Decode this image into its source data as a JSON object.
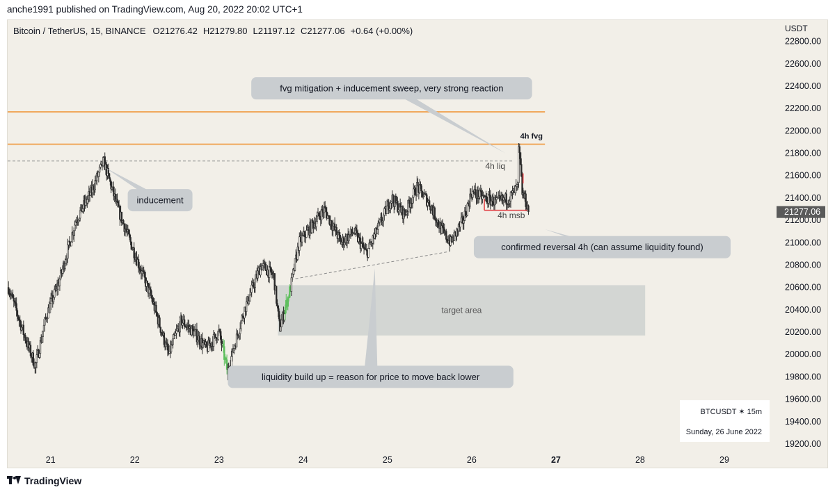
{
  "header": {
    "published_line": "anche1991 published on TradingView.com, Aug 20, 2022 20:02 UTC+1"
  },
  "legend": {
    "symbol": "Bitcoin / TetherUS, 15, BINANCE",
    "open": "O21276.42",
    "high": "H21279.80",
    "low": "L21197.12",
    "close": "C21277.06",
    "change": "+0.64 (+0.00%)"
  },
  "footer": {
    "brand": "TradingView"
  },
  "watermark": {
    "symbol": "BTCUSDT ✶ 15m",
    "date": "Sunday, 26 June 2022"
  },
  "colors": {
    "background": "#f2efe8",
    "candle": "#2b2b2b",
    "bull_highlight": "#5fbf5f",
    "orange_level": "#f0a85c",
    "red_marker": "#e0393e",
    "callout": "#c9cdd0",
    "target_zone": "#d3d6d3",
    "price_tag": "#5a5a5a"
  },
  "chart_data": {
    "type": "candlestick",
    "symbol": "BTCUSDT",
    "timeframe": "15m",
    "currency_label": "USDT",
    "y_ticks": [
      "22800.00",
      "22600.00",
      "22400.00",
      "22200.00",
      "22000.00",
      "21800.00",
      "21600.00",
      "21400.00",
      "21200.00",
      "21000.00",
      "20800.00",
      "20600.00",
      "20400.00",
      "20200.00",
      "20000.00",
      "19800.00",
      "19600.00",
      "19400.00",
      "19200.00"
    ],
    "ylim": [
      19150,
      22990
    ],
    "x_ticks": [
      "21",
      "22",
      "23",
      "24",
      "25",
      "26",
      "27",
      "28",
      "29"
    ],
    "x_ticks_bold": [
      "27"
    ],
    "xlim": [
      20.49,
      29.62
    ],
    "last_price": "21277.06",
    "price_path": [
      {
        "x": 20.5,
        "y": 20600
      },
      {
        "x": 20.72,
        "y": 20100
      },
      {
        "x": 20.82,
        "y": 19900
      },
      {
        "x": 20.95,
        "y": 20350
      },
      {
        "x": 21.1,
        "y": 20650
      },
      {
        "x": 21.3,
        "y": 21200
      },
      {
        "x": 21.48,
        "y": 21450
      },
      {
        "x": 21.63,
        "y": 21730
      },
      {
        "x": 21.8,
        "y": 21300
      },
      {
        "x": 22.0,
        "y": 20900
      },
      {
        "x": 22.2,
        "y": 20500
      },
      {
        "x": 22.4,
        "y": 20000
      },
      {
        "x": 22.55,
        "y": 20300
      },
      {
        "x": 22.7,
        "y": 20200
      },
      {
        "x": 22.85,
        "y": 20050
      },
      {
        "x": 23.0,
        "y": 20200
      },
      {
        "x": 23.1,
        "y": 19850
      },
      {
        "x": 23.3,
        "y": 20400
      },
      {
        "x": 23.5,
        "y": 20800
      },
      {
        "x": 23.65,
        "y": 20700
      },
      {
        "x": 23.72,
        "y": 20230
      },
      {
        "x": 23.85,
        "y": 20600
      },
      {
        "x": 23.95,
        "y": 21000
      },
      {
        "x": 24.1,
        "y": 21150
      },
      {
        "x": 24.25,
        "y": 21300
      },
      {
        "x": 24.45,
        "y": 21000
      },
      {
        "x": 24.6,
        "y": 21100
      },
      {
        "x": 24.75,
        "y": 20900
      },
      {
        "x": 24.9,
        "y": 21150
      },
      {
        "x": 25.05,
        "y": 21400
      },
      {
        "x": 25.2,
        "y": 21250
      },
      {
        "x": 25.35,
        "y": 21500
      },
      {
        "x": 25.5,
        "y": 21350
      },
      {
        "x": 25.65,
        "y": 21100
      },
      {
        "x": 25.75,
        "y": 21000
      },
      {
        "x": 25.9,
        "y": 21200
      },
      {
        "x": 26.0,
        "y": 21450
      },
      {
        "x": 26.15,
        "y": 21400
      },
      {
        "x": 26.3,
        "y": 21360
      },
      {
        "x": 26.45,
        "y": 21400
      },
      {
        "x": 26.55,
        "y": 21500
      },
      {
        "x": 26.56,
        "y": 21870
      },
      {
        "x": 26.6,
        "y": 21450
      },
      {
        "x": 26.65,
        "y": 21350
      },
      {
        "x": 26.68,
        "y": 21277
      }
    ],
    "green_candle_x_ranges": [
      [
        23.05,
        23.1
      ],
      [
        23.78,
        23.85
      ]
    ],
    "levels": [
      {
        "price": 22170,
        "x_start": 20.49,
        "x_end": 26.87,
        "style": "solid",
        "color": "orange"
      },
      {
        "price": 21880,
        "x_start": 20.49,
        "x_end": 26.87,
        "style": "solid",
        "color": "orange"
      },
      {
        "price": 21730,
        "x_start": 20.49,
        "x_end": 26.48,
        "style": "dashed",
        "color": "grey"
      }
    ],
    "trendlines": [
      {
        "from": {
          "x": 23.85,
          "y": 20670
        },
        "to": {
          "x": 25.73,
          "y": 20920
        },
        "style": "dashed"
      }
    ],
    "zones": [
      {
        "label": "target area",
        "x_start": 23.7,
        "x_end": 28.06,
        "y_low": 20170,
        "y_high": 20620
      }
    ],
    "annotations": [
      {
        "text": "fvg mitigation + inducement sweep, very strong reaction",
        "x": 25.05,
        "y": 22380,
        "type": "callout",
        "pointer": {
          "x": 26.4,
          "y": 21800
        }
      },
      {
        "text": "inducement",
        "x": 22.3,
        "y": 21380,
        "type": "callout",
        "pointer": {
          "x": 21.65,
          "y": 21670
        }
      },
      {
        "text": "confirmed reversal 4h (can assume liquidity found)",
        "x": 27.55,
        "y": 20960,
        "type": "callout",
        "pointer": {
          "x": 26.87,
          "y": 21120
        }
      },
      {
        "text": "liquidity build up = reason for price to move back lower",
        "x": 24.8,
        "y": 19800,
        "type": "callout",
        "pointer": {
          "x": 24.85,
          "y": 20770
        }
      },
      {
        "text": "4h fvg",
        "x": 26.71,
        "y": 21930,
        "type": "label",
        "bold": true
      },
      {
        "text": "4h liq",
        "x": 26.28,
        "y": 21660,
        "type": "label"
      },
      {
        "text": "4h msb",
        "x": 26.47,
        "y": 21220,
        "type": "label"
      }
    ],
    "msb_marker": {
      "y": 21290,
      "x_start": 26.15,
      "x_end": 26.66,
      "tick_top": 21390,
      "vertical_x": 26.61,
      "vertical_y": [
        21530,
        21620
      ]
    }
  }
}
